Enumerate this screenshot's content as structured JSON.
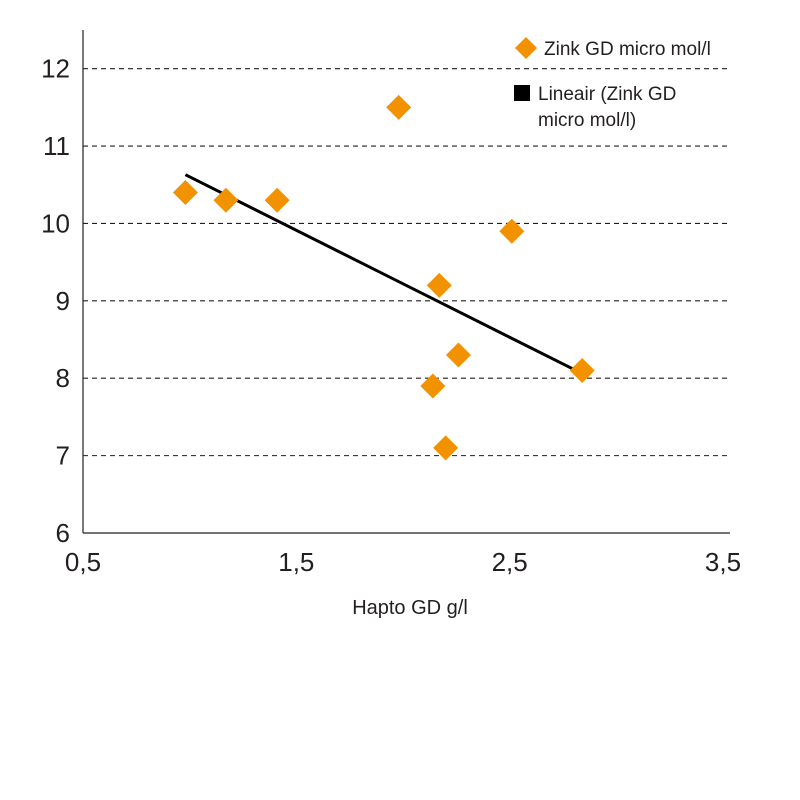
{
  "chart_data": {
    "type": "scatter",
    "xlabel": "Hapto GD g/l",
    "ylabel": "",
    "xlim": [
      0.5,
      3.5
    ],
    "ylim": [
      6,
      12.5
    ],
    "x_ticks": [
      "0,5",
      "1,5",
      "2,5",
      "3,5"
    ],
    "y_ticks": [
      "6",
      "7",
      "8",
      "9",
      "10",
      "11",
      "12"
    ],
    "grid": "horizontal dashed",
    "legend_position": "top-right",
    "series": [
      {
        "name": "Zink GD micro mol/l",
        "marker": "diamond",
        "color": "#f39200",
        "points": [
          {
            "x": 0.98,
            "y": 10.4
          },
          {
            "x": 1.17,
            "y": 10.3
          },
          {
            "x": 1.41,
            "y": 10.3
          },
          {
            "x": 1.98,
            "y": 11.5
          },
          {
            "x": 2.17,
            "y": 9.2
          },
          {
            "x": 2.51,
            "y": 9.9
          },
          {
            "x": 2.26,
            "y": 8.3
          },
          {
            "x": 2.14,
            "y": 7.9
          },
          {
            "x": 2.2,
            "y": 7.1
          },
          {
            "x": 2.84,
            "y": 8.1
          }
        ]
      },
      {
        "name": "Lineair (Zink GD micro mol/l)",
        "legend_lines": [
          "Lineair (Zink GD",
          "micro mol/l)"
        ],
        "type": "line",
        "color": "#000000",
        "points": [
          {
            "x": 0.98,
            "y": 10.63
          },
          {
            "x": 2.84,
            "y": 8.06
          }
        ]
      }
    ]
  }
}
